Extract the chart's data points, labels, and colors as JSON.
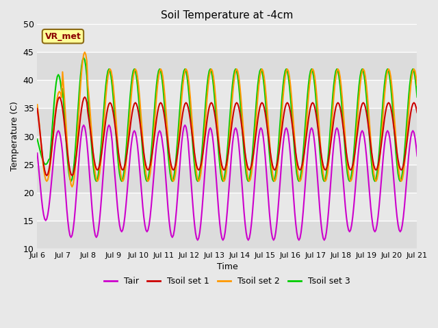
{
  "title": "Soil Temperature at -4cm",
  "xlabel": "Time",
  "ylabel": "Temperature (C)",
  "ylim": [
    10,
    50
  ],
  "xlim": [
    0,
    360
  ],
  "background_color": "#e8e8e8",
  "plot_bg_color": "#e8e8e8",
  "band_light": "#f0f0f0",
  "band_dark": "#dcdcdc",
  "grid_color": "#ffffff",
  "annotation_text": "VR_met",
  "annotation_bg": "#ffff99",
  "annotation_border": "#8B6914",
  "annotation_text_color": "#8B0000",
  "colors": {
    "Tair": "#cc00cc",
    "Tsoil1": "#cc0000",
    "Tsoil2": "#ff9900",
    "Tsoil3": "#00cc00"
  },
  "legend_labels": [
    "Tair",
    "Tsoil set 1",
    "Tsoil set 2",
    "Tsoil set 3"
  ],
  "xtick_labels": [
    "Jul 6",
    "Jul 7",
    "Jul 8",
    "Jul 9",
    "Jul 10",
    "Jul 11",
    "Jul 12",
    "Jul 13",
    "Jul 14",
    "Jul 15",
    "Jul 16",
    "Jul 17",
    "Jul 18",
    "Jul 19",
    "Jul 20",
    "Jul 21"
  ],
  "xtick_positions": [
    0,
    24,
    48,
    72,
    96,
    120,
    144,
    168,
    192,
    216,
    240,
    264,
    288,
    312,
    336,
    360
  ],
  "ytick_positions": [
    10,
    15,
    20,
    25,
    30,
    35,
    40,
    45,
    50
  ],
  "line_width": 1.5
}
